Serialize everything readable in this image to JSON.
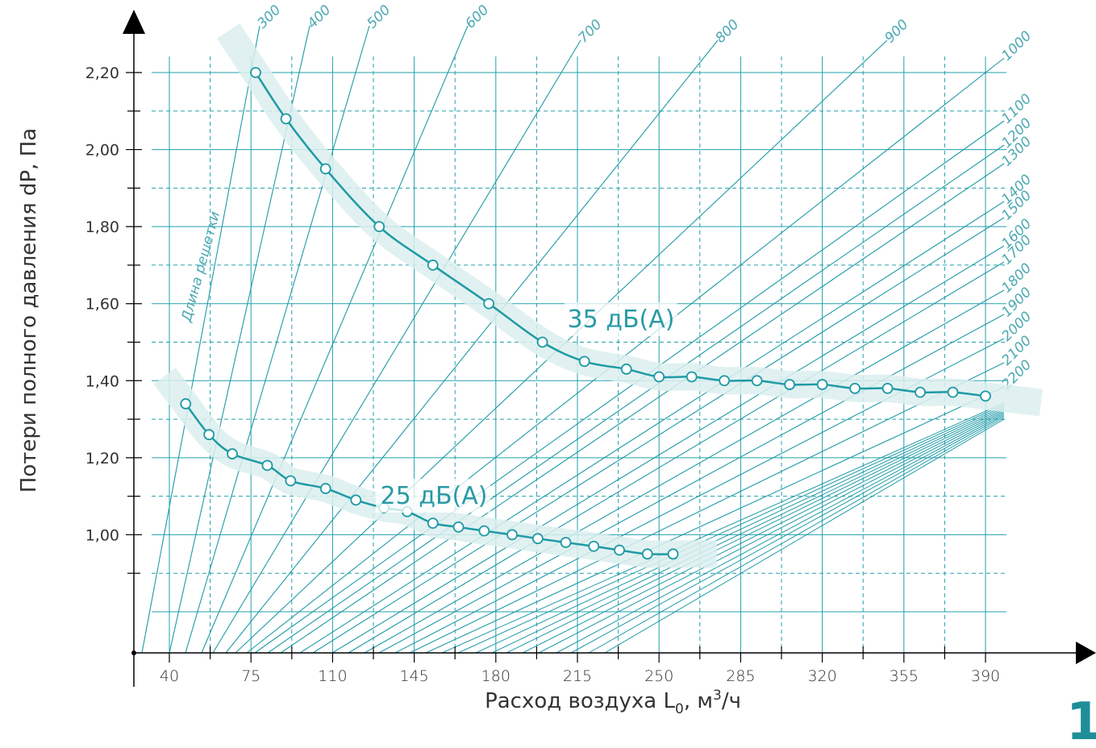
{
  "colors": {
    "teal": "#1f9aa5",
    "band": "#dcefef",
    "grid": "#22a0ab",
    "axis": "#000000",
    "label": "#4aa8b0"
  },
  "page_number": "1",
  "chart_data": {
    "type": "line",
    "title": "",
    "xlabel_main": "Расход воздуха L",
    "xlabel_sub": "0",
    "xlabel_tail": ", м",
    "xlabel_sup": "3",
    "xlabel_end": "/ч",
    "ylabel": "Потери полного давления dP, Па",
    "x_ticks": [
      40,
      75,
      110,
      145,
      180,
      215,
      250,
      285,
      320,
      355,
      390
    ],
    "x_tick_labels": [
      "40",
      "75",
      "110",
      "145",
      "180",
      "215",
      "250",
      "285",
      "320",
      "355",
      "390"
    ],
    "y_ticks": [
      1.0,
      1.2,
      1.4,
      1.6,
      1.8,
      2.0,
      2.2
    ],
    "y_tick_labels": [
      "1,00",
      "1,20",
      "1,40",
      "1,60",
      "1,80",
      "2,00",
      "2,20"
    ],
    "xlim": [
      40,
      390
    ],
    "ylim": [
      0.8,
      2.2
    ],
    "grid": true,
    "grid_label": "Длина решетки",
    "grille_lengths": [
      "300",
      "400",
      "500",
      "600",
      "700",
      "800",
      "900",
      "1000",
      "1100",
      "1200",
      "1300",
      "1400",
      "1500",
      "1600",
      "1700",
      "1800",
      "1900",
      "2000",
      "2100",
      "2200"
    ],
    "series": [
      {
        "name": "35 дБ(А)",
        "x": [
          77,
          90,
          107,
          130,
          153,
          177,
          200,
          218,
          236,
          250,
          264,
          278,
          292,
          306,
          320,
          334,
          348,
          362,
          376,
          390
        ],
        "y": [
          2.2,
          2.08,
          1.95,
          1.8,
          1.7,
          1.6,
          1.5,
          1.45,
          1.43,
          1.41,
          1.41,
          1.4,
          1.4,
          1.39,
          1.39,
          1.38,
          1.38,
          1.37,
          1.37,
          1.36
        ]
      },
      {
        "name": "25 дБ(А)",
        "x": [
          47,
          57,
          67,
          82,
          92,
          107,
          120,
          132,
          142,
          153,
          164,
          175,
          187,
          198,
          210,
          222,
          233,
          245,
          256
        ],
        "y": [
          1.34,
          1.26,
          1.21,
          1.18,
          1.14,
          1.12,
          1.09,
          1.07,
          1.06,
          1.03,
          1.02,
          1.01,
          1.0,
          0.99,
          0.98,
          0.97,
          0.96,
          0.95,
          0.95
        ]
      }
    ]
  }
}
